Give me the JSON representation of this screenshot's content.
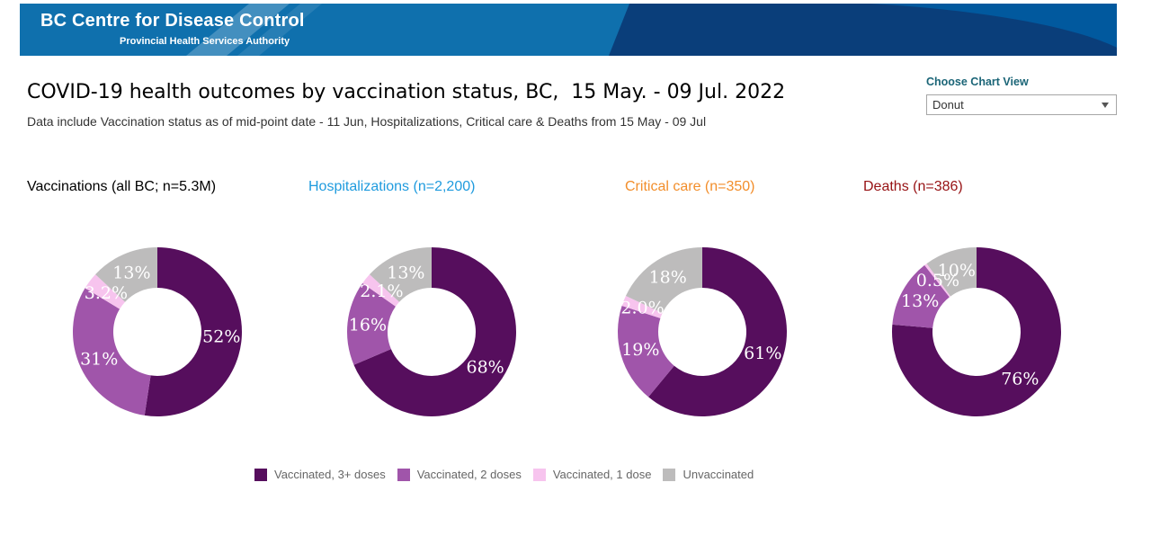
{
  "header": {
    "logo_title": "BC Centre for Disease Control",
    "logo_subtitle": "Provincial Health Services Authority"
  },
  "title": "COVID-19 health outcomes by vaccination status, BC,  15 May. - 09 Jul. 2022",
  "subtitle": "Data include Vaccination status as of mid-point date - 11 Jun, Hospitalizations, Critical care & Deaths from 15 May - 09 Jul",
  "chart_view_control": {
    "label": "Choose Chart View",
    "selected": "Donut"
  },
  "legend": [
    {
      "label": "Vaccinated, 3+ doses",
      "color": "#560E5D"
    },
    {
      "label": "Vaccinated, 2 doses",
      "color": "#A055AA"
    },
    {
      "label": "Vaccinated, 1 dose",
      "color": "#F7C4EE"
    },
    {
      "label": "Unvaccinated",
      "color": "#BDBCBC"
    }
  ],
  "chart_data": [
    {
      "type": "pie",
      "variant": "donut",
      "title": "Vaccinations (all BC; n=5.3M)",
      "title_color": "#000000",
      "categories": [
        "Vaccinated, 3+ doses",
        "Vaccinated, 2 doses",
        "Vaccinated, 1 dose",
        "Unvaccinated"
      ],
      "values": [
        52,
        31,
        3.2,
        13
      ],
      "labels": [
        "52%",
        "31%",
        "3.2%",
        "13%"
      ]
    },
    {
      "type": "pie",
      "variant": "donut",
      "title": "Hospitalizations (n=2,200)",
      "title_color": "#1F9BDE",
      "categories": [
        "Vaccinated, 3+ doses",
        "Vaccinated, 2 doses",
        "Vaccinated, 1 dose",
        "Unvaccinated"
      ],
      "values": [
        68,
        16,
        2.1,
        13
      ],
      "labels": [
        "68%",
        "16%",
        "2.1%",
        "13%"
      ]
    },
    {
      "type": "pie",
      "variant": "donut",
      "title": "Critical care (n=350)",
      "title_color": "#F28E2B",
      "categories": [
        "Vaccinated, 3+ doses",
        "Vaccinated, 2 doses",
        "Vaccinated, 1 dose",
        "Unvaccinated"
      ],
      "values": [
        61,
        19,
        2.0,
        18
      ],
      "labels": [
        "61%",
        "19%",
        "2.0%",
        "18%"
      ]
    },
    {
      "type": "pie",
      "variant": "donut",
      "title": "Deaths (n=386)",
      "title_color": "#971214",
      "categories": [
        "Vaccinated, 3+ doses",
        "Vaccinated, 2 doses",
        "Vaccinated, 1 dose",
        "Unvaccinated"
      ],
      "values": [
        76,
        13,
        0.5,
        10
      ],
      "labels": [
        "76%",
        "13%",
        "0.5%",
        "10%"
      ]
    }
  ]
}
